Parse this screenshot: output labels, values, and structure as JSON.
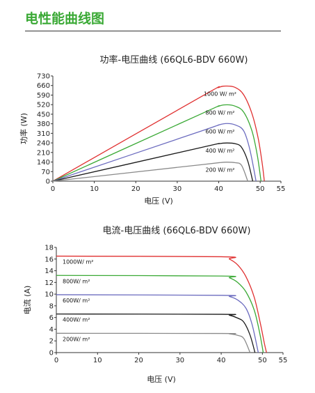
{
  "page_title": "电性能曲线图",
  "chart_data": [
    {
      "type": "line",
      "title": "功率-电压曲线 (66QL6-BDV 660W)",
      "xlabel": "电压 (V)",
      "ylabel": "功率 (W)",
      "xlim": [
        0,
        55
      ],
      "ylim": [
        0,
        730
      ],
      "xticks": [
        "0",
        "10",
        "20",
        "30",
        "40",
        "50",
        "55"
      ],
      "yticks": [
        "0",
        "70",
        "140",
        "210",
        "240",
        "310",
        "380",
        "450",
        "520",
        "590",
        "660",
        "730"
      ],
      "series": [
        {
          "name": "1000 W/ m²",
          "color": "#e03030",
          "x": [
            0,
            36,
            40,
            42,
            44,
            46,
            48,
            49.5,
            50.5,
            51
          ],
          "y": [
            0,
            590,
            650,
            660,
            650,
            600,
            470,
            300,
            120,
            0
          ]
        },
        {
          "name": "800 W/ m²",
          "color": "#3aa935",
          "x": [
            0,
            36,
            40,
            42,
            44,
            46,
            48,
            49.3,
            50.2
          ],
          "y": [
            0,
            470,
            520,
            530,
            520,
            480,
            350,
            180,
            0
          ]
        },
        {
          "name": "600 W/ m²",
          "color": "#6b6bbf",
          "x": [
            0,
            36,
            40,
            42,
            44,
            46,
            47.5,
            49
          ],
          "y": [
            0,
            350,
            390,
            400,
            390,
            350,
            220,
            0
          ]
        },
        {
          "name": "400 W/ m²",
          "color": "#1a1a1a",
          "x": [
            0,
            36,
            40,
            42,
            44,
            45.5,
            47,
            48.2
          ],
          "y": [
            0,
            235,
            260,
            265,
            260,
            235,
            140,
            0
          ]
        },
        {
          "name": "200 W/ m²",
          "color": "#8a8a8a",
          "x": [
            0,
            36,
            40,
            42,
            44,
            45.5,
            47
          ],
          "y": [
            0,
            115,
            128,
            132,
            128,
            110,
            0
          ]
        }
      ]
    },
    {
      "type": "line",
      "title": "电流-电压曲线 (66QL6-BDV 660W)",
      "xlabel": "电压 (V)",
      "ylabel": "电流 (A)",
      "xlim": [
        0,
        55
      ],
      "ylim": [
        0,
        18
      ],
      "xticks": [
        "0",
        "10",
        "20",
        "30",
        "40",
        "50",
        "55"
      ],
      "yticks": [
        "0",
        "2",
        "4",
        "6",
        "8",
        "10",
        "12",
        "14",
        "16",
        "18"
      ],
      "series": [
        {
          "name": "1000W/ m²",
          "color": "#e03030",
          "x": [
            0,
            40,
            42,
            44,
            46,
            48,
            49.5,
            50.5,
            51
          ],
          "y": [
            16.5,
            16.4,
            16.0,
            15.0,
            13.0,
            9.5,
            5.0,
            1.5,
            0
          ]
        },
        {
          "name": "800W/ m²",
          "color": "#3aa935",
          "x": [
            0,
            40,
            42,
            44,
            46,
            48,
            49.3,
            50.2
          ],
          "y": [
            13.2,
            13.1,
            12.8,
            12.0,
            10.4,
            7.3,
            3.5,
            0
          ]
        },
        {
          "name": "600W/ m²",
          "color": "#6b6bbf",
          "x": [
            0,
            40,
            42,
            44,
            46,
            47.5,
            49
          ],
          "y": [
            9.9,
            9.8,
            9.6,
            9.0,
            7.6,
            4.8,
            0
          ]
        },
        {
          "name": "400W/ m²",
          "color": "#1a1a1a",
          "x": [
            0,
            40,
            42,
            44,
            45.5,
            47,
            48.2
          ],
          "y": [
            6.6,
            6.55,
            6.4,
            5.9,
            5.2,
            3.0,
            0
          ]
        },
        {
          "name": "200W/ m²",
          "color": "#8a8a8a",
          "x": [
            0,
            40,
            42,
            44,
            45.5,
            47
          ],
          "y": [
            3.3,
            3.27,
            3.2,
            2.95,
            2.4,
            0
          ]
        }
      ]
    }
  ]
}
